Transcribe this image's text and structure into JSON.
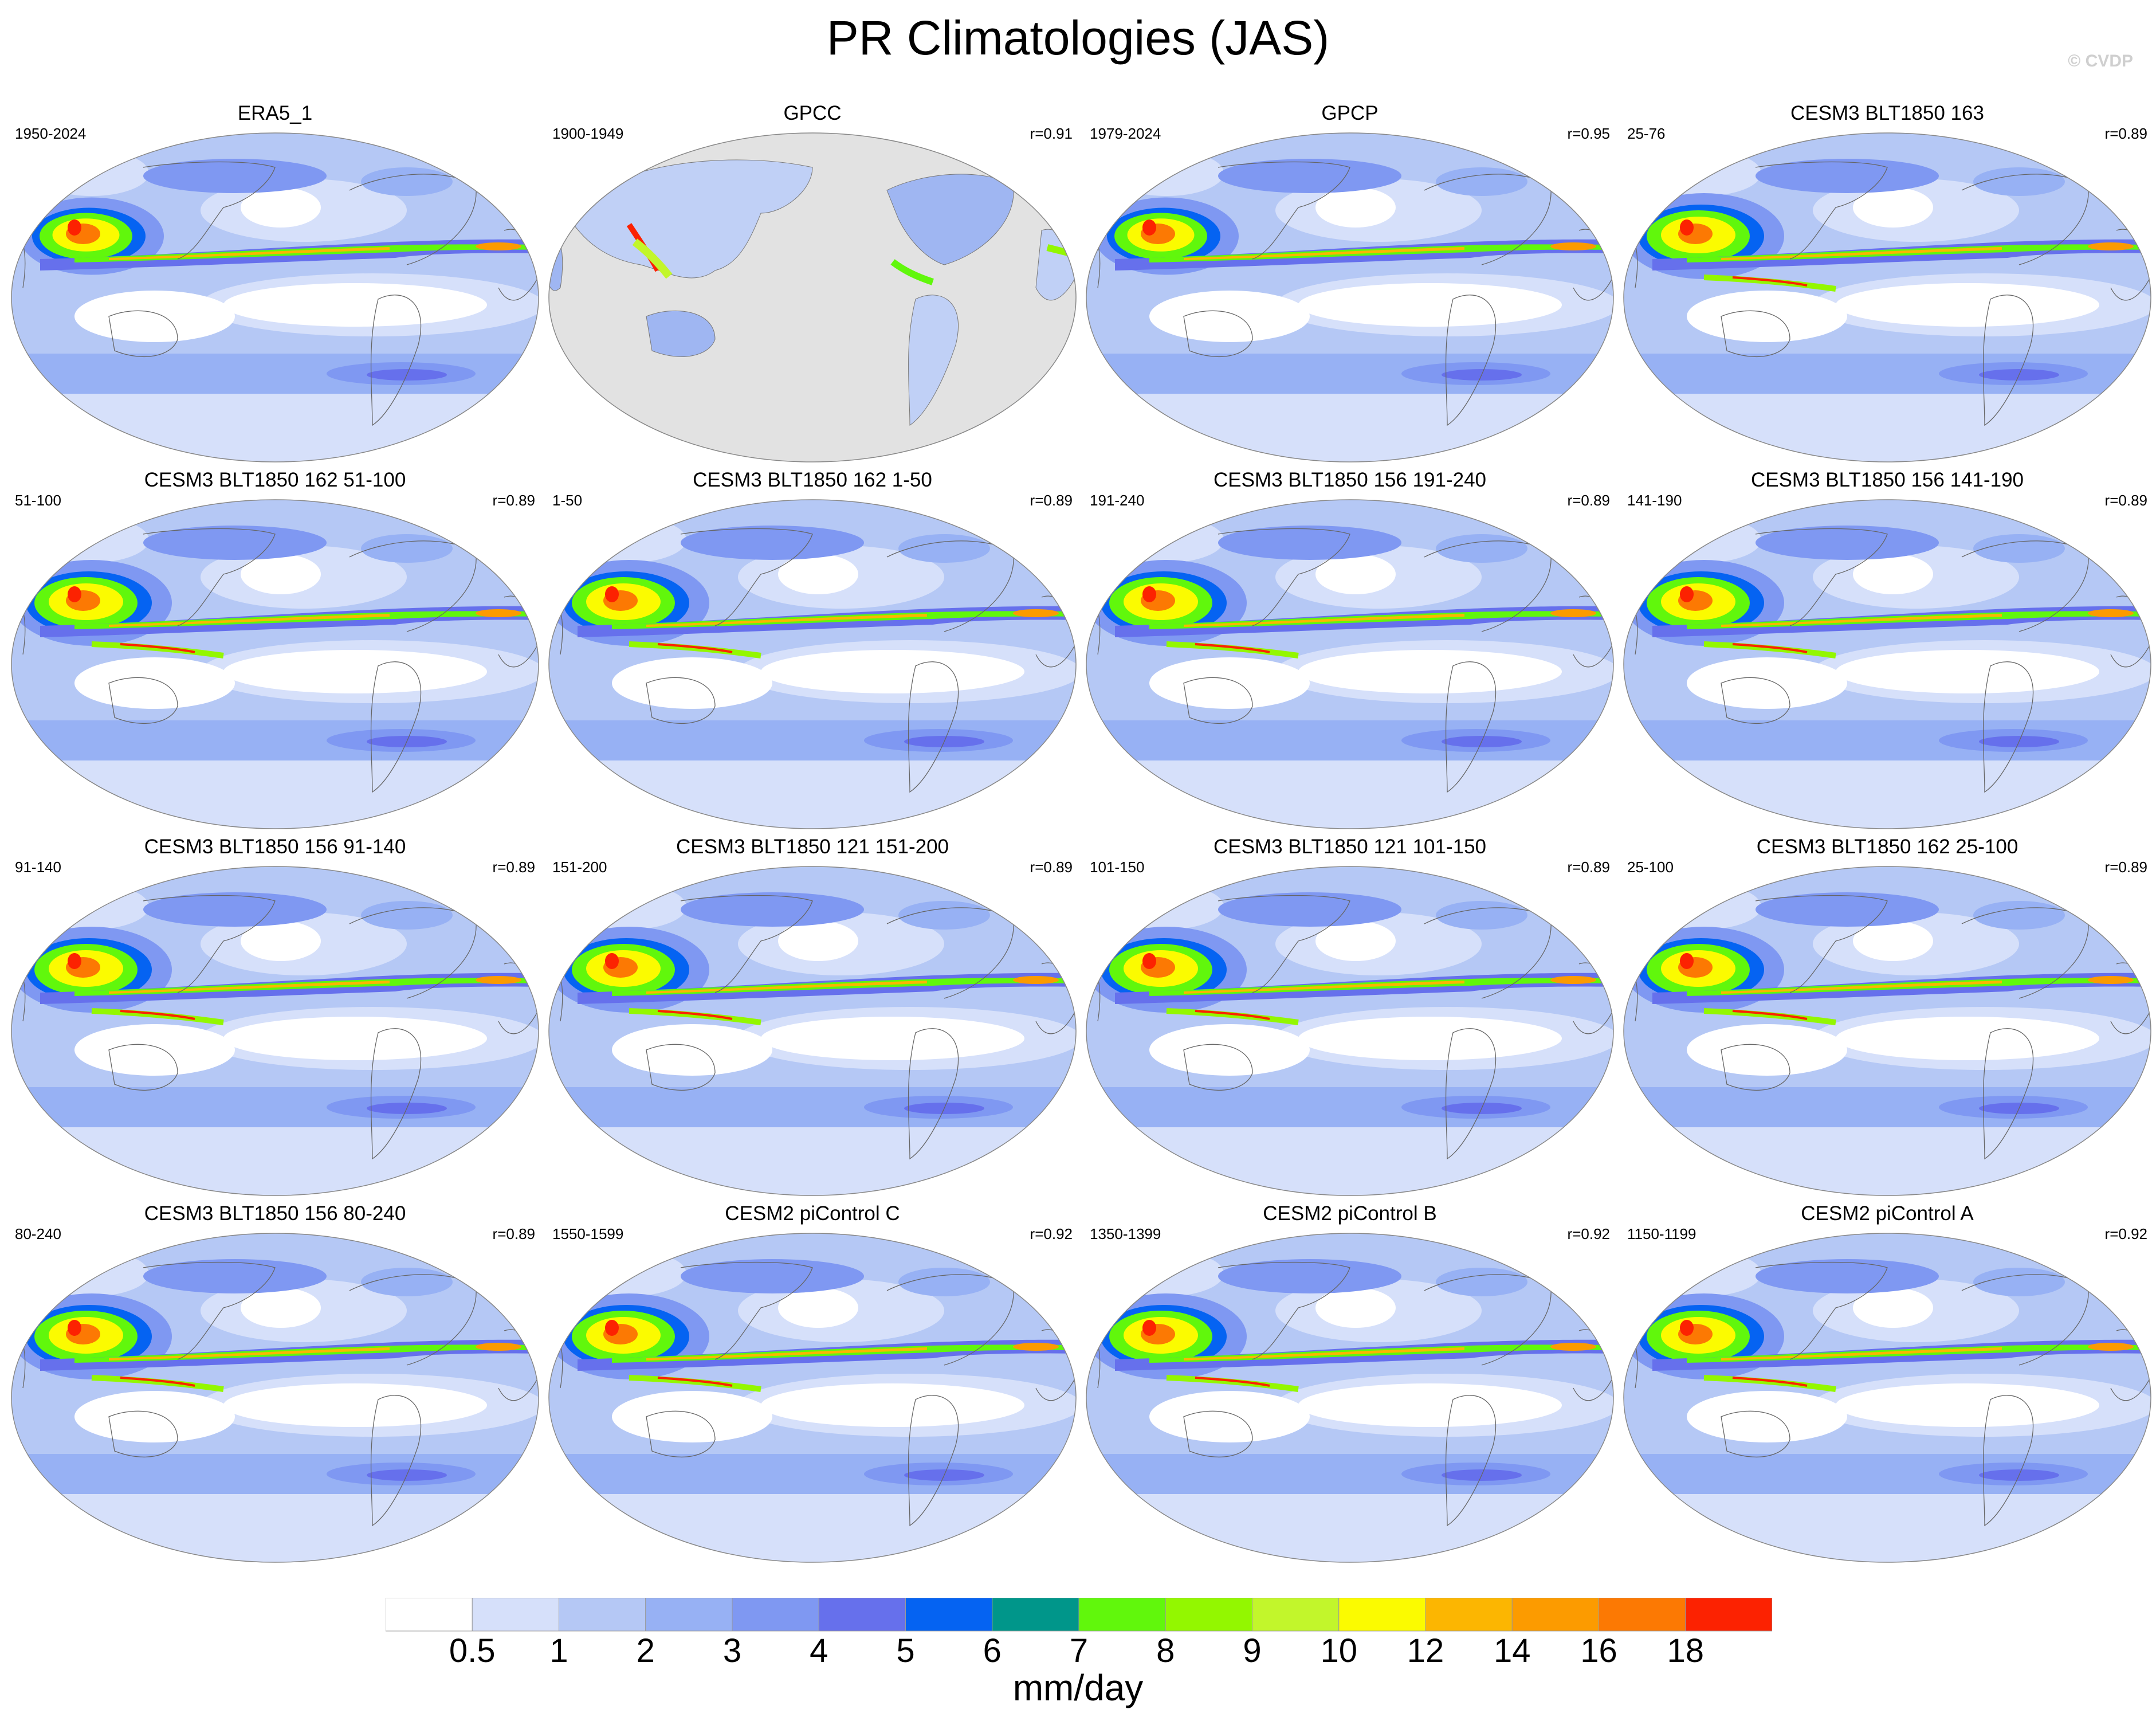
{
  "title": "PR Climatologies (JAS)",
  "credit": "© CVDP",
  "units": "mm/day",
  "colorbar": {
    "colors": [
      "#ffffff",
      "#d6e0fa",
      "#b5c8f5",
      "#97b1f4",
      "#7f98f2",
      "#6670ec",
      "#0563f2",
      "#00968a",
      "#61f70c",
      "#93f700",
      "#c2f62b",
      "#fbfb00",
      "#fcb601",
      "#fc9b00",
      "#fc7903",
      "#fc2201"
    ],
    "labels": [
      "0.5",
      "1",
      "2",
      "3",
      "4",
      "5",
      "6",
      "7",
      "8",
      "9",
      "10",
      "12",
      "14",
      "16",
      "18"
    ]
  },
  "panels": [
    {
      "title": "ERA5_1",
      "period": "1950-2024",
      "corr": "",
      "kind": "obs"
    },
    {
      "title": "GPCC",
      "period": "1900-1949",
      "corr": "r=0.91",
      "kind": "land"
    },
    {
      "title": "GPCP",
      "period": "1979-2024",
      "corr": "r=0.95",
      "kind": "obs"
    },
    {
      "title": "CESM3 BLT1850 163",
      "period": "25-76",
      "corr": "r=0.89",
      "kind": "model"
    },
    {
      "title": "CESM3 BLT1850 162 51-100",
      "period": "51-100",
      "corr": "r=0.89",
      "kind": "model"
    },
    {
      "title": "CESM3 BLT1850 162 1-50",
      "period": "1-50",
      "corr": "r=0.89",
      "kind": "model"
    },
    {
      "title": "CESM3 BLT1850 156 191-240",
      "period": "191-240",
      "corr": "r=0.89",
      "kind": "model"
    },
    {
      "title": "CESM3 BLT1850 156 141-190",
      "period": "141-190",
      "corr": "r=0.89",
      "kind": "model"
    },
    {
      "title": "CESM3 BLT1850 156 91-140",
      "period": "91-140",
      "corr": "r=0.89",
      "kind": "model"
    },
    {
      "title": "CESM3 BLT1850 121 151-200",
      "period": "151-200",
      "corr": "r=0.89",
      "kind": "model"
    },
    {
      "title": "CESM3 BLT1850 121 101-150",
      "period": "101-150",
      "corr": "r=0.89",
      "kind": "model"
    },
    {
      "title": "CESM3 BLT1850 162 25-100",
      "period": "25-100",
      "corr": "r=0.89",
      "kind": "model"
    },
    {
      "title": "CESM3 BLT1850 156 80-240",
      "period": "80-240",
      "corr": "r=0.89",
      "kind": "model"
    },
    {
      "title": "CESM2 piControl C",
      "period": "1550-1599",
      "corr": "r=0.92",
      "kind": "model"
    },
    {
      "title": "CESM2 piControl B",
      "period": "1350-1399",
      "corr": "r=0.92",
      "kind": "model"
    },
    {
      "title": "CESM2 piControl A",
      "period": "1150-1199",
      "corr": "r=0.92",
      "kind": "model"
    }
  ]
}
